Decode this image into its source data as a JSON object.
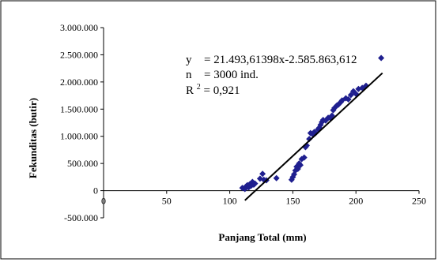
{
  "chart_data": {
    "type": "scatter",
    "xlabel": "Panjang Total (mm)",
    "ylabel": "Fekunditas (butir)",
    "xlim": [
      0,
      250
    ],
    "ylim": [
      -500000,
      3000000
    ],
    "x_ticks": [
      "0",
      "50",
      "100",
      "150",
      "200",
      "250"
    ],
    "x_tick_values": [
      0,
      50,
      100,
      150,
      200,
      250
    ],
    "y_ticks": [
      "3.000.000",
      "2.500.000",
      "2.000.000",
      "1.500.000",
      "1.000.000",
      "500.000",
      "0",
      "-500.000"
    ],
    "y_tick_values": [
      3000000,
      2500000,
      2000000,
      1500000,
      1000000,
      500000,
      0,
      -500000
    ],
    "grid": false,
    "marker_color": "#1f1f8f",
    "trend_color": "#000000",
    "trendline": {
      "slope": 21493.61398,
      "intercept": -2585863.612,
      "x_range": [
        112,
        221
      ]
    },
    "annotation": {
      "line1_label": "y",
      "line1_value": "= 21.493,61398x-2.585.863,612",
      "line2_label": "n",
      "line2_value": "=  3000 ind.",
      "line3_label": "R",
      "line3_sup": "2",
      "line3_value": " =   0,921"
    },
    "points": [
      [
        110,
        50000
      ],
      [
        112,
        30000
      ],
      [
        113,
        80000
      ],
      [
        114,
        100000
      ],
      [
        115,
        60000
      ],
      [
        116,
        120000
      ],
      [
        117,
        90000
      ],
      [
        118,
        160000
      ],
      [
        119,
        110000
      ],
      [
        120,
        130000
      ],
      [
        124,
        220000
      ],
      [
        126,
        310000
      ],
      [
        127,
        200000
      ],
      [
        129,
        190000
      ],
      [
        137,
        230000
      ],
      [
        149,
        200000
      ],
      [
        150,
        250000
      ],
      [
        151,
        300000
      ],
      [
        152,
        370000
      ],
      [
        153,
        440000
      ],
      [
        154,
        400000
      ],
      [
        155,
        500000
      ],
      [
        156,
        470000
      ],
      [
        157,
        580000
      ],
      [
        159,
        610000
      ],
      [
        160,
        800000
      ],
      [
        161,
        830000
      ],
      [
        163,
        950000
      ],
      [
        164,
        1060000
      ],
      [
        166,
        1030000
      ],
      [
        167,
        1080000
      ],
      [
        168,
        1060000
      ],
      [
        170,
        1130000
      ],
      [
        171,
        1160000
      ],
      [
        172,
        1210000
      ],
      [
        173,
        1260000
      ],
      [
        174,
        1300000
      ],
      [
        176,
        1290000
      ],
      [
        178,
        1340000
      ],
      [
        180,
        1330000
      ],
      [
        181,
        1380000
      ],
      [
        182,
        1480000
      ],
      [
        183,
        1520000
      ],
      [
        185,
        1570000
      ],
      [
        186,
        1580000
      ],
      [
        188,
        1630000
      ],
      [
        189,
        1660000
      ],
      [
        192,
        1700000
      ],
      [
        194,
        1680000
      ],
      [
        196,
        1760000
      ],
      [
        198,
        1830000
      ],
      [
        200,
        1780000
      ],
      [
        202,
        1870000
      ],
      [
        205,
        1890000
      ],
      [
        208,
        1930000
      ],
      [
        220,
        2440000
      ]
    ]
  }
}
